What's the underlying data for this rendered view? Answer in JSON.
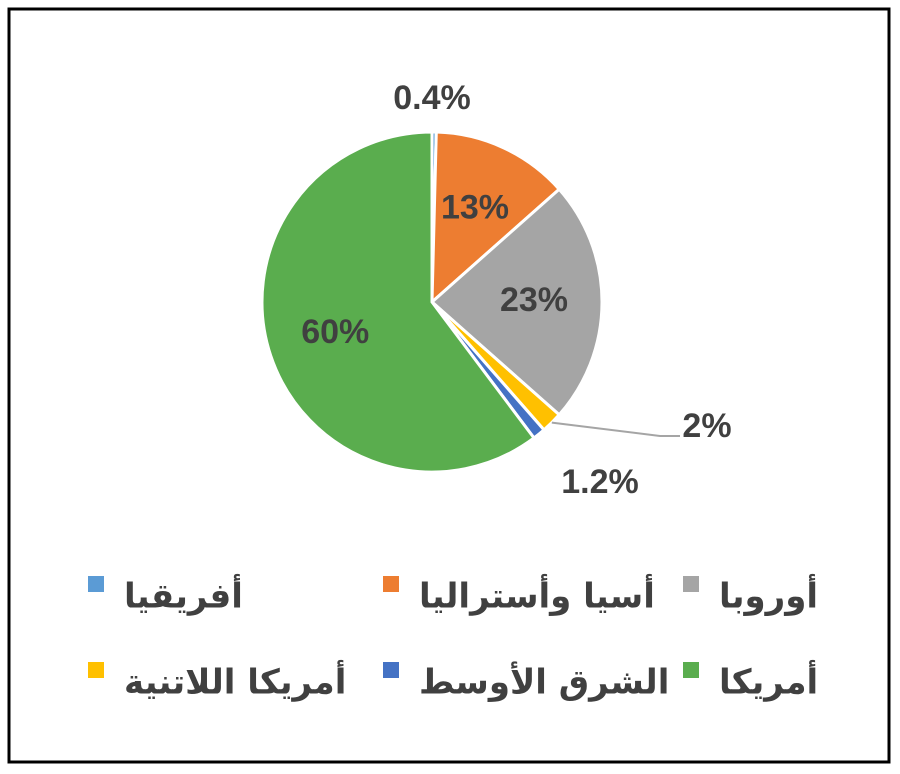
{
  "chart_data": {
    "type": "pie",
    "categories": [
      "أفريقيا",
      "أسيا وأستراليا",
      "أوروبا",
      "أمريكا اللاتنية",
      "الشرق الأوسط",
      "أمريكا"
    ],
    "values": [
      0.4,
      13,
      23,
      2,
      1.2,
      60
    ],
    "value_labels": [
      "0.4%",
      "13%",
      "23%",
      "2%",
      "1.2%",
      "60%"
    ],
    "colors": [
      "#5b9bd5",
      "#ed7d31",
      "#a5a5a5",
      "#ffc000",
      "#4472c4",
      "#5aad4e"
    ],
    "legend": "bottom"
  }
}
